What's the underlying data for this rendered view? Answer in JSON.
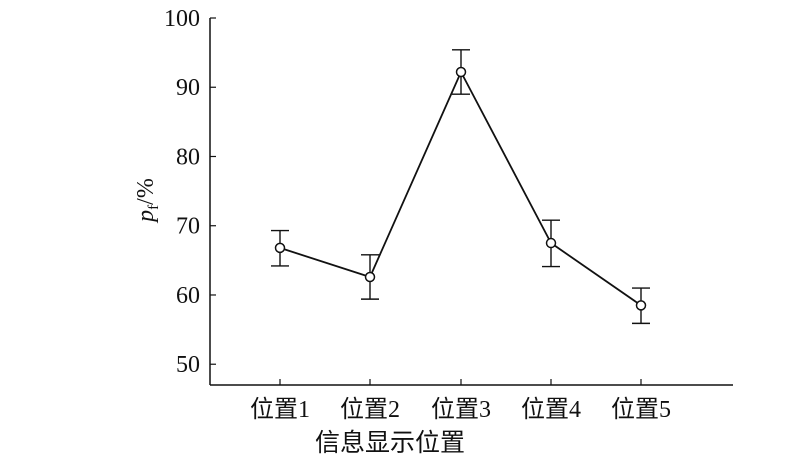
{
  "chart_data": {
    "type": "line",
    "title": "",
    "xlabel": "信息显示位置",
    "ylabel": {
      "main": "p",
      "sub": "f",
      "suffix": "/%"
    },
    "categories": [
      "位置1",
      "位置2",
      "位置3",
      "位置4",
      "位置5"
    ],
    "series": [
      {
        "values": [
          66.8,
          62.6,
          92.2,
          67.5,
          58.5
        ],
        "error_upper": [
          69.3,
          65.8,
          95.4,
          70.8,
          61.0
        ],
        "error_lower": [
          64.2,
          59.4,
          89.0,
          64.1,
          55.9
        ]
      }
    ],
    "ylim": [
      47,
      100
    ],
    "yticks": [
      50,
      60,
      70,
      80,
      90,
      100
    ],
    "grid": false,
    "legend": "none",
    "colors": {
      "line": "#111111",
      "marker_fill": "#ffffff"
    },
    "marker": "open-circle"
  }
}
